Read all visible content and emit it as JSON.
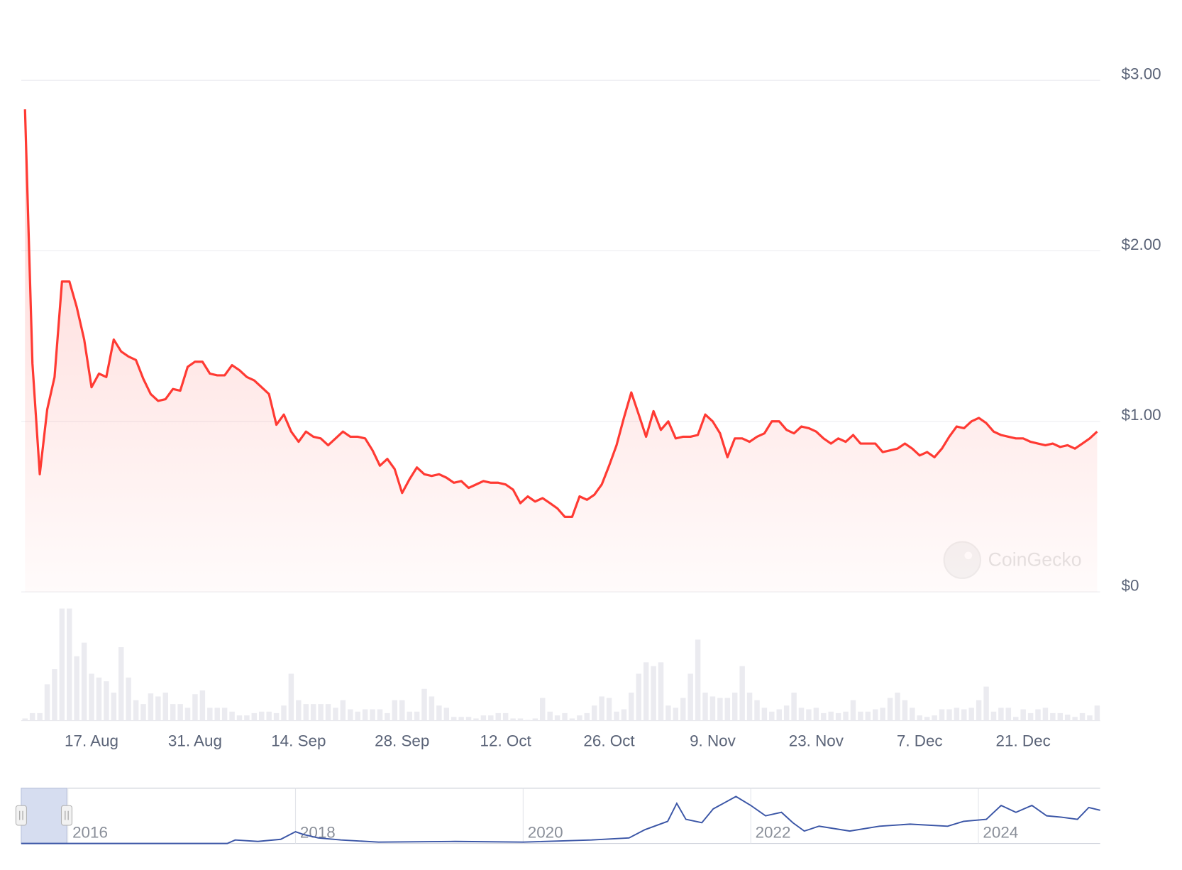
{
  "chart_data": {
    "type": "line",
    "color": "#ff3a33",
    "grid": true,
    "watermark": "CoinGecko",
    "ylim": [
      0,
      3
    ],
    "yticks": [
      {
        "value": 0,
        "label": "$0"
      },
      {
        "value": 1,
        "label": "$1.00"
      },
      {
        "value": 2,
        "label": "$2.00"
      },
      {
        "value": 3,
        "label": "$3.00"
      }
    ],
    "categories": [
      null,
      null,
      null,
      null,
      null,
      null,
      null,
      null,
      null,
      "17. Aug",
      null,
      null,
      null,
      null,
      null,
      null,
      null,
      null,
      null,
      null,
      null,
      null,
      null,
      "31. Aug",
      null,
      null,
      null,
      null,
      null,
      null,
      null,
      null,
      null,
      null,
      null,
      null,
      null,
      "14. Sep",
      null,
      null,
      null,
      null,
      null,
      null,
      null,
      null,
      null,
      null,
      null,
      null,
      null,
      "28. Sep",
      null,
      null,
      null,
      null,
      null,
      null,
      null,
      null,
      null,
      null,
      null,
      null,
      null,
      "12. Oct",
      null,
      null,
      null,
      null,
      null,
      null,
      null,
      null,
      null,
      null,
      null,
      null,
      null,
      "26. Oct",
      null,
      null,
      null,
      null,
      null,
      null,
      null,
      null,
      null,
      null,
      null,
      null,
      null,
      "9. Nov",
      null,
      null,
      null,
      null,
      null,
      null,
      null,
      null,
      null,
      null,
      null,
      null,
      null,
      "23. Nov",
      null,
      null,
      null,
      null,
      null,
      null,
      null,
      null,
      null,
      null,
      null,
      null,
      null,
      "7. Dec",
      null,
      null,
      null,
      null,
      null,
      null,
      null,
      null,
      null,
      null,
      null,
      null,
      null,
      "21. Dec",
      null,
      null,
      null,
      null,
      null,
      null,
      null,
      null,
      null,
      null
    ],
    "values": [
      2.83,
      1.34,
      0.69,
      1.07,
      1.26,
      1.82,
      1.82,
      1.67,
      1.48,
      1.2,
      1.28,
      1.26,
      1.48,
      1.41,
      1.38,
      1.36,
      1.25,
      1.16,
      1.12,
      1.13,
      1.19,
      1.18,
      1.32,
      1.35,
      1.35,
      1.28,
      1.27,
      1.27,
      1.33,
      1.3,
      1.26,
      1.24,
      1.2,
      1.16,
      0.98,
      1.04,
      0.94,
      0.88,
      0.94,
      0.91,
      0.9,
      0.86,
      0.9,
      0.94,
      0.91,
      0.91,
      0.9,
      0.83,
      0.74,
      0.78,
      0.72,
      0.58,
      0.66,
      0.73,
      0.69,
      0.68,
      0.69,
      0.67,
      0.64,
      0.65,
      0.61,
      0.63,
      0.65,
      0.64,
      0.64,
      0.63,
      0.6,
      0.52,
      0.56,
      0.53,
      0.55,
      0.52,
      0.49,
      0.44,
      0.44,
      0.56,
      0.54,
      0.57,
      0.63,
      0.74,
      0.86,
      1.02,
      1.17,
      1.04,
      0.91,
      1.06,
      0.95,
      1.0,
      0.9,
      0.91,
      0.91,
      0.92,
      1.04,
      1.0,
      0.93,
      0.79,
      0.9,
      0.9,
      0.88,
      0.91,
      0.93,
      1.0,
      1.0,
      0.95,
      0.93,
      0.97,
      0.96,
      0.94,
      0.9,
      0.87,
      0.9,
      0.88,
      0.92,
      0.87,
      0.87,
      0.87,
      0.82,
      0.83,
      0.84,
      0.87,
      0.84,
      0.8,
      0.82,
      0.79,
      0.84,
      0.91,
      0.97,
      0.96,
      1.0,
      1.02,
      0.99,
      0.94,
      0.92,
      0.91,
      0.9,
      0.9,
      0.88,
      0.87,
      0.86,
      0.87,
      0.85,
      0.86,
      0.84,
      0.87,
      0.9,
      0.94
    ],
    "volume": {
      "type": "bar",
      "color": "#ebebf0",
      "ylim": [
        0,
        150
      ],
      "values": [
        3,
        10,
        10,
        48,
        68,
        148,
        148,
        85,
        103,
        62,
        57,
        52,
        37,
        97,
        57,
        27,
        22,
        36,
        32,
        37,
        22,
        22,
        17,
        35,
        40,
        17,
        17,
        17,
        12,
        7,
        7,
        10,
        12,
        12,
        10,
        20,
        62,
        27,
        22,
        22,
        22,
        22,
        17,
        27,
        15,
        12,
        15,
        15,
        15,
        10,
        27,
        27,
        12,
        12,
        42,
        32,
        20,
        17,
        5,
        5,
        5,
        3,
        7,
        7,
        10,
        10,
        3,
        3,
        1,
        3,
        30,
        12,
        7,
        10,
        3,
        7,
        10,
        20,
        32,
        30,
        12,
        15,
        37,
        62,
        77,
        72,
        77,
        20,
        17,
        30,
        62,
        107,
        37,
        32,
        30,
        30,
        37,
        72,
        37,
        27,
        17,
        12,
        15,
        20,
        37,
        17,
        15,
        17,
        10,
        12,
        10,
        12,
        27,
        12,
        12,
        15,
        17,
        30,
        37,
        27,
        17,
        7,
        5,
        7,
        15,
        15,
        17,
        15,
        17,
        27,
        45,
        12,
        17,
        17,
        5,
        15,
        10,
        15,
        17,
        10,
        10,
        8,
        5,
        10,
        7,
        20
      ]
    },
    "navigator": {
      "type": "line",
      "color": "#3a55a6",
      "xlim": [
        2015.59,
        2025.07
      ],
      "xticks": [
        2016,
        2018,
        2020,
        2022,
        2024
      ],
      "ylim": [
        0,
        80
      ],
      "x": [
        2015.59,
        2017.4,
        2017.47,
        2017.67,
        2017.87,
        2018.0,
        2018.07,
        2018.2,
        2018.4,
        2018.73,
        2019.4,
        2020.0,
        2020.6,
        2020.93,
        2021.07,
        2021.27,
        2021.35,
        2021.43,
        2021.57,
        2021.67,
        2021.87,
        2022.0,
        2022.13,
        2022.27,
        2022.37,
        2022.47,
        2022.6,
        2022.87,
        2023.13,
        2023.4,
        2023.73,
        2023.87,
        2024.07,
        2024.2,
        2024.33,
        2024.47,
        2024.6,
        2024.73,
        2024.87,
        2024.97,
        2025.07
      ],
      "values": [
        0,
        0,
        5,
        3,
        6,
        17,
        13,
        8,
        5,
        2,
        3,
        2,
        5,
        8,
        20,
        32,
        58,
        35,
        30,
        50,
        68,
        55,
        40,
        45,
        30,
        18,
        25,
        18,
        25,
        28,
        25,
        32,
        35,
        55,
        45,
        55,
        40,
        38,
        35,
        52,
        48
      ]
    }
  }
}
